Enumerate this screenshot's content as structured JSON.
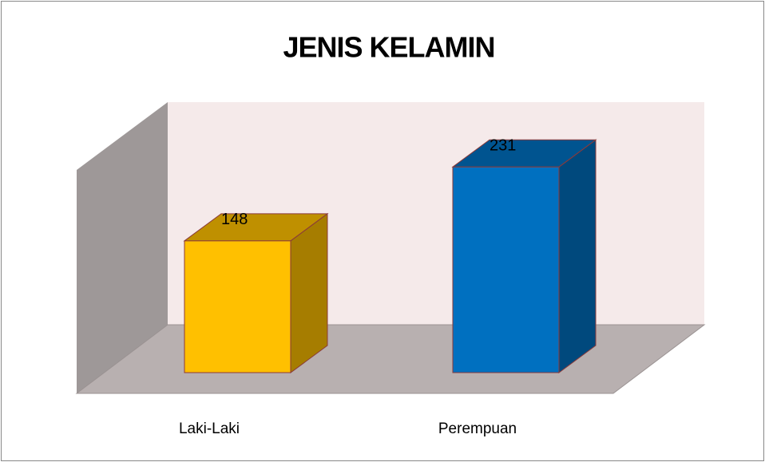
{
  "chart_data": {
    "type": "bar3d",
    "title": "JENIS KELAMIN",
    "categories": [
      "Laki-Laki",
      "Perempuan"
    ],
    "values": [
      148,
      231
    ],
    "colors": [
      "#ffc000",
      "#0070c0"
    ],
    "ylim": [
      0,
      250
    ]
  }
}
